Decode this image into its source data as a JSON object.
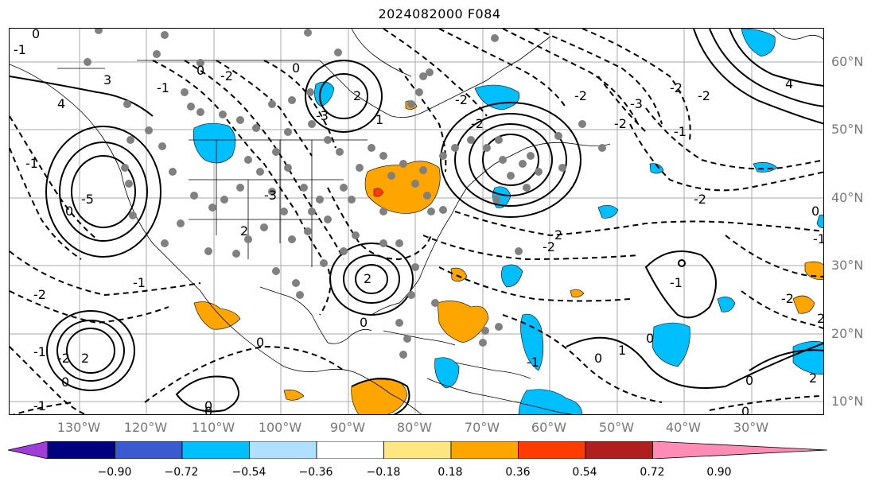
{
  "title": "2024082000 F084",
  "lat_labels": [
    "60°N",
    "50°N",
    "40°N",
    "30°N",
    "20°N",
    "10°N"
  ],
  "lon_labels": [
    "130°W",
    "120°W",
    "110°W",
    "100°W",
    "90°W",
    "80°W",
    "70°W",
    "60°W",
    "50°W",
    "40°W",
    "30°W"
  ],
  "colorbar": {
    "ticks": [
      "−0.90",
      "−0.72",
      "−0.54",
      "−0.36",
      "−0.18",
      "0.18",
      "0.36",
      "0.54",
      "0.72",
      "0.90"
    ],
    "colors": [
      "#a03cd8",
      "#000080",
      "#3a5bd0",
      "#00bfff",
      "#b0e0ff",
      "#ffffff",
      "#ffe680",
      "#ffa500",
      "#ff3c00",
      "#b01e1e",
      "#ff8cb4"
    ]
  },
  "contour_labels": [
    "0",
    "-1",
    "3",
    "4",
    "0",
    "2",
    "-1",
    "-2",
    "-3",
    "-2",
    "-2",
    "-5",
    "-1",
    "0",
    "2",
    "-1",
    "2",
    "-3",
    "0",
    "-2",
    "2",
    "-3",
    "-1",
    "-2",
    "1",
    "0",
    "-2",
    "2",
    "-2",
    "-1",
    "0",
    "0",
    "-1",
    "-1",
    "0",
    "0",
    "1",
    "-2",
    "0",
    "-2",
    "4",
    "0",
    "0",
    "-1",
    "2",
    "-1",
    "-2",
    "2",
    "0",
    "-2",
    "-2",
    "0"
  ],
  "station_count_note": ""
}
